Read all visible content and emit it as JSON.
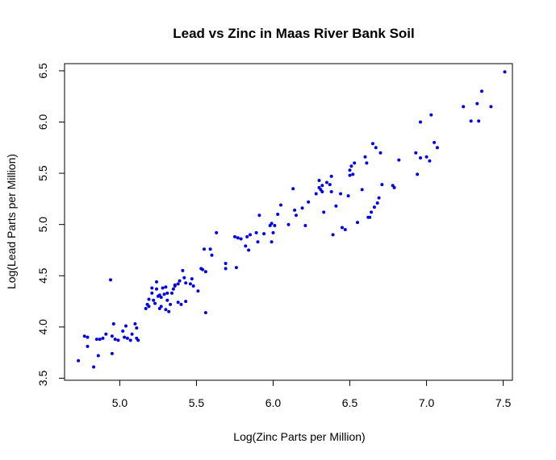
{
  "chart_data": {
    "type": "scatter",
    "title": "Lead vs Zinc in Maas River Bank Soil",
    "xlabel": "Log(Zinc Parts per Million)",
    "ylabel": "Log(Lead Parts per Million)",
    "xlim": [
      4.64,
      7.56
    ],
    "ylim": [
      3.48,
      6.57
    ],
    "x_ticks": [
      5.0,
      5.5,
      6.0,
      6.5,
      7.0,
      7.5
    ],
    "x_tick_labels": [
      "5.0",
      "5.5",
      "6.0",
      "6.5",
      "7.0",
      "7.5"
    ],
    "y_ticks": [
      3.5,
      4.0,
      4.5,
      5.0,
      5.5,
      6.0,
      6.5
    ],
    "y_tick_labels": [
      "3.5",
      "4.0",
      "4.5",
      "5.0",
      "5.5",
      "6.0",
      "6.5"
    ],
    "grid": false,
    "point_color": "#0000e6",
    "points": [
      [
        4.73,
        3.67
      ],
      [
        4.77,
        3.91
      ],
      [
        4.79,
        3.9
      ],
      [
        4.79,
        3.81
      ],
      [
        4.83,
        3.61
      ],
      [
        4.85,
        3.88
      ],
      [
        4.87,
        3.88
      ],
      [
        4.86,
        3.72
      ],
      [
        4.89,
        3.89
      ],
      [
        4.91,
        3.93
      ],
      [
        4.94,
        4.46
      ],
      [
        4.95,
        3.91
      ],
      [
        4.95,
        3.74
      ],
      [
        4.96,
        4.03
      ],
      [
        4.97,
        3.88
      ],
      [
        4.99,
        3.87
      ],
      [
        5.02,
        3.96
      ],
      [
        5.03,
        3.9
      ],
      [
        5.04,
        4.01
      ],
      [
        5.05,
        3.89
      ],
      [
        5.07,
        3.87
      ],
      [
        5.08,
        3.93
      ],
      [
        5.1,
        4.03
      ],
      [
        5.11,
        3.99
      ],
      [
        5.11,
        3.89
      ],
      [
        5.12,
        3.87
      ],
      [
        5.17,
        4.18
      ],
      [
        5.18,
        4.22
      ],
      [
        5.19,
        4.2
      ],
      [
        5.19,
        4.27
      ],
      [
        5.21,
        4.33
      ],
      [
        5.21,
        4.38
      ],
      [
        5.22,
        4.26
      ],
      [
        5.23,
        4.23
      ],
      [
        5.24,
        4.37
      ],
      [
        5.24,
        4.44
      ],
      [
        5.25,
        4.3
      ],
      [
        5.26,
        4.31
      ],
      [
        5.26,
        4.18
      ],
      [
        5.27,
        4.2
      ],
      [
        5.27,
        4.29
      ],
      [
        5.28,
        4.38
      ],
      [
        5.29,
        4.32
      ],
      [
        5.3,
        4.17
      ],
      [
        5.3,
        4.39
      ],
      [
        5.31,
        4.26
      ],
      [
        5.31,
        4.33
      ],
      [
        5.32,
        4.15
      ],
      [
        5.33,
        4.22
      ],
      [
        5.34,
        4.33
      ],
      [
        5.35,
        4.37
      ],
      [
        5.36,
        4.4
      ],
      [
        5.36,
        4.41
      ],
      [
        5.38,
        4.42
      ],
      [
        5.38,
        4.24
      ],
      [
        5.39,
        4.45
      ],
      [
        5.4,
        4.22
      ],
      [
        5.41,
        4.55
      ],
      [
        5.42,
        4.48
      ],
      [
        5.43,
        4.43
      ],
      [
        5.43,
        4.25
      ],
      [
        5.46,
        4.42
      ],
      [
        5.47,
        4.47
      ],
      [
        5.48,
        4.4
      ],
      [
        5.51,
        4.35
      ],
      [
        5.53,
        4.57
      ],
      [
        5.54,
        4.56
      ],
      [
        5.55,
        4.76
      ],
      [
        5.56,
        4.54
      ],
      [
        5.56,
        4.14
      ],
      [
        5.59,
        4.76
      ],
      [
        5.6,
        4.7
      ],
      [
        5.63,
        4.92
      ],
      [
        5.69,
        4.62
      ],
      [
        5.69,
        4.57
      ],
      [
        5.75,
        4.88
      ],
      [
        5.76,
        4.58
      ],
      [
        5.77,
        4.87
      ],
      [
        5.79,
        4.86
      ],
      [
        5.82,
        4.79
      ],
      [
        5.83,
        4.88
      ],
      [
        5.84,
        4.75
      ],
      [
        5.85,
        4.9
      ],
      [
        5.89,
        4.92
      ],
      [
        5.9,
        4.83
      ],
      [
        5.91,
        5.09
      ],
      [
        5.94,
        4.91
      ],
      [
        5.98,
        4.99
      ],
      [
        5.99,
        4.83
      ],
      [
        5.99,
        5.01
      ],
      [
        6.0,
        4.92
      ],
      [
        6.01,
        4.99
      ],
      [
        6.03,
        5.1
      ],
      [
        6.05,
        5.19
      ],
      [
        6.1,
        5.0
      ],
      [
        6.13,
        5.35
      ],
      [
        6.14,
        5.14
      ],
      [
        6.15,
        5.09
      ],
      [
        6.19,
        5.16
      ],
      [
        6.21,
        4.99
      ],
      [
        6.23,
        5.22
      ],
      [
        6.28,
        5.3
      ],
      [
        6.3,
        5.36
      ],
      [
        6.3,
        5.43
      ],
      [
        6.31,
        5.34
      ],
      [
        6.32,
        5.38
      ],
      [
        6.32,
        5.32
      ],
      [
        6.33,
        5.12
      ],
      [
        6.35,
        5.41
      ],
      [
        6.37,
        5.39
      ],
      [
        6.38,
        5.47
      ],
      [
        6.38,
        5.32
      ],
      [
        6.39,
        4.9
      ],
      [
        6.41,
        5.18
      ],
      [
        6.44,
        5.3
      ],
      [
        6.45,
        4.97
      ],
      [
        6.47,
        4.95
      ],
      [
        6.49,
        5.28
      ],
      [
        6.5,
        5.48
      ],
      [
        6.5,
        5.53
      ],
      [
        6.51,
        5.57
      ],
      [
        6.52,
        5.49
      ],
      [
        6.53,
        5.6
      ],
      [
        6.55,
        5.02
      ],
      [
        6.58,
        5.34
      ],
      [
        6.6,
        5.66
      ],
      [
        6.61,
        5.6
      ],
      [
        6.62,
        5.07
      ],
      [
        6.63,
        5.07
      ],
      [
        6.64,
        5.12
      ],
      [
        6.65,
        5.79
      ],
      [
        6.66,
        5.17
      ],
      [
        6.67,
        5.75
      ],
      [
        6.68,
        5.21
      ],
      [
        6.69,
        5.26
      ],
      [
        6.7,
        5.7
      ],
      [
        6.71,
        5.39
      ],
      [
        6.78,
        5.38
      ],
      [
        6.79,
        5.36
      ],
      [
        6.82,
        5.63
      ],
      [
        6.93,
        5.7
      ],
      [
        6.94,
        5.49
      ],
      [
        6.96,
        5.65
      ],
      [
        6.96,
        6.0
      ],
      [
        7.0,
        5.66
      ],
      [
        7.02,
        5.62
      ],
      [
        7.03,
        6.07
      ],
      [
        7.05,
        5.8
      ],
      [
        7.07,
        5.75
      ],
      [
        7.24,
        6.15
      ],
      [
        7.29,
        6.01
      ],
      [
        7.33,
        6.18
      ],
      [
        7.34,
        6.01
      ],
      [
        7.36,
        6.3
      ],
      [
        7.42,
        6.15
      ],
      [
        7.51,
        6.49
      ]
    ]
  }
}
